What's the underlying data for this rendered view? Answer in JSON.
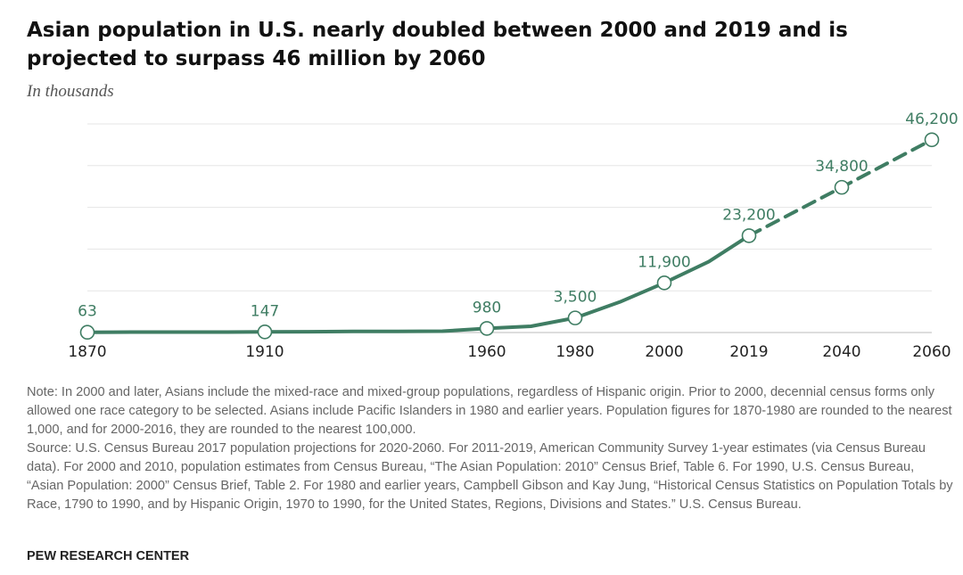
{
  "title": "Asian population in U.S. nearly doubled between 2000 and 2019 and is projected to surpass 46 million by 2060",
  "subtitle": "In thousands",
  "note": "Note: In 2000 and later, Asians include the mixed-race and mixed-group populations, regardless of Hispanic origin. Prior to 2000, decennial census forms only allowed one race category to be selected. Asians include Pacific Islanders in 1980 and earlier years. Population figures for 1870-1980 are rounded to the nearest 1,000, and for 2000-2016, they are rounded to the nearest 100,000.",
  "source": "Source: U.S. Census Bureau 2017 population projections for 2020-2060. For 2011-2019, American Community Survey 1-year estimates (via Census Bureau data). For 2000 and 2010, population estimates from Census Bureau, “The Asian Population: 2010” Census Brief, Table 6. For 1990, U.S. Census Bureau, “Asian Population: 2000” Census Brief, Table 2. For 1980 and earlier years, Campbell Gibson and Kay Jung, “Historical Census Statistics on Population Totals by Race, 1790 to 1990, and by Hispanic Origin, 1970 to 1990, for the United States, Regions, Divisions and States.” U.S. Census Bureau.",
  "credit": "PEW RESEARCH CENTER",
  "colors": {
    "line": "#3f7d63",
    "label": "#3f7d63",
    "grid": "#e6e6e6",
    "axis": "#bbbbbb"
  },
  "chart_data": {
    "type": "line",
    "title": "Asian population in U.S. nearly doubled between 2000 and 2019 and is projected to surpass 46 million by 2060",
    "ylabel": "In thousands",
    "xlabel": "",
    "ylim": [
      0,
      50000
    ],
    "grid": true,
    "x_ticks": [
      "1870",
      "1910",
      "1960",
      "1980",
      "2000",
      "2019",
      "2040",
      "2060"
    ],
    "series": [
      {
        "style": "solid",
        "x": [
          1870,
          1880,
          1890,
          1900,
          1910,
          1920,
          1930,
          1940,
          1950,
          1960,
          1970,
          1980,
          1990,
          2000,
          2010,
          2019
        ],
        "y": [
          63,
          106,
          110,
          115,
          147,
          182,
          265,
          255,
          321,
          980,
          1500,
          3500,
          7300,
          11900,
          17000,
          23200
        ]
      },
      {
        "style": "dashed",
        "x": [
          2019,
          2040,
          2060
        ],
        "y": [
          23200,
          34800,
          46200
        ]
      }
    ],
    "markers": [
      {
        "x": 1870,
        "y": 63,
        "label": "63"
      },
      {
        "x": 1910,
        "y": 147,
        "label": "147"
      },
      {
        "x": 1960,
        "y": 980,
        "label": "980"
      },
      {
        "x": 1980,
        "y": 3500,
        "label": "3,500"
      },
      {
        "x": 2000,
        "y": 11900,
        "label": "11,900"
      },
      {
        "x": 2019,
        "y": 23200,
        "label": "23,200"
      },
      {
        "x": 2040,
        "y": 34800,
        "label": "34,800"
      },
      {
        "x": 2060,
        "y": 46200,
        "label": "46,200"
      }
    ]
  }
}
